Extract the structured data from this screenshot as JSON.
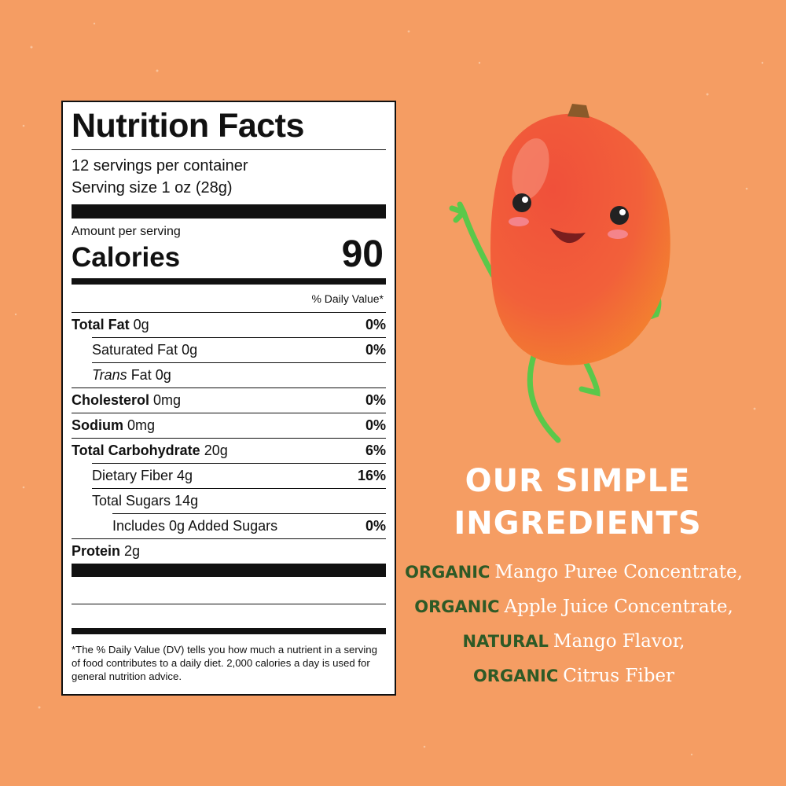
{
  "label": {
    "title": "Nutrition Facts",
    "servings": "12 servings per container",
    "serving_size": "Serving size 1 oz (28g)",
    "amount_per_serving": "Amount per serving",
    "calories_label": "Calories",
    "calories": 90,
    "daily_value_header": "% Daily Value*",
    "rows": [
      {
        "name": "Total Fat",
        "amount": "0g",
        "dv": "0%",
        "style": "bold",
        "indent": 0
      },
      {
        "name": "Saturated Fat 0g",
        "dv": "0%",
        "style": "normal",
        "indent": 1
      },
      {
        "italic_prefix": "Trans",
        "name": "Fat 0g",
        "style": "normal",
        "indent": 1
      },
      {
        "name": "Cholesterol",
        "amount": "0mg",
        "dv": "0%",
        "style": "bold",
        "indent": 0
      },
      {
        "name": "Sodium",
        "amount": "0mg",
        "dv": "0%",
        "style": "bold",
        "indent": 0
      },
      {
        "name": "Total Carbohydrate",
        "amount": "20g",
        "dv": "6%",
        "style": "bold",
        "indent": 0
      },
      {
        "name": "Dietary Fiber 4g",
        "dv": "16%",
        "style": "normal",
        "indent": 1
      },
      {
        "name": "Total Sugars 14g",
        "style": "normal",
        "indent": 1
      },
      {
        "name": "Includes 0g Added Sugars",
        "dv": "0%",
        "style": "normal",
        "indent": 2
      },
      {
        "name": "Protein",
        "amount": "2g",
        "style": "bold",
        "indent": 0
      }
    ],
    "footnote": "*The % Daily Value (DV) tells you how much a nutrient in a serving of food contributes to a daily diet. 2,000 calories a day is used for general nutrition advice."
  },
  "ingredients": {
    "title": [
      "OUR SIMPLE",
      "INGREDIENTS"
    ],
    "items": [
      {
        "qualifier": "ORGANIC",
        "name": "Mango Puree Concentrate,"
      },
      {
        "qualifier": "ORGANIC",
        "name": "Apple Juice Concentrate,"
      },
      {
        "qualifier": "NATURAL",
        "name": "Mango Flavor,"
      },
      {
        "qualifier": "ORGANIC",
        "name": "Citrus Fiber"
      }
    ]
  }
}
